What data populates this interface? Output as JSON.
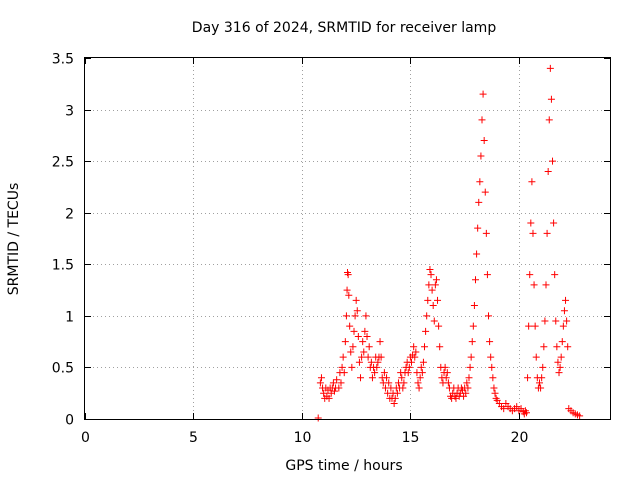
{
  "chart_data": {
    "type": "scatter",
    "title": "Day 316 of 2024, SRMTID for receiver lamp",
    "xlabel": "GPS time / hours",
    "ylabel": "SRMTID / TECUs",
    "xlim": [
      0,
      24.2
    ],
    "ylim": [
      0,
      3.5
    ],
    "xticks": [
      0,
      5,
      10,
      15,
      20
    ],
    "xtick_labels": [
      "0",
      "5",
      "10",
      "15",
      "20"
    ],
    "yticks": [
      0,
      0.5,
      1,
      1.5,
      2,
      2.5,
      3,
      3.5
    ],
    "ytick_labels": [
      "0",
      "0.5",
      "1",
      "1.5",
      "2",
      "2.5",
      "3",
      "3.5"
    ],
    "grid": true,
    "marker": "+",
    "color": "#ff0000",
    "series": [
      {
        "name": "SRMTID",
        "points": [
          [
            10.75,
            0.01
          ],
          [
            10.85,
            0.35
          ],
          [
            10.9,
            0.4
          ],
          [
            10.95,
            0.3
          ],
          [
            11.0,
            0.25
          ],
          [
            11.05,
            0.2
          ],
          [
            11.1,
            0.3
          ],
          [
            11.15,
            0.22
          ],
          [
            11.2,
            0.28
          ],
          [
            11.25,
            0.2
          ],
          [
            11.3,
            0.3
          ],
          [
            11.35,
            0.25
          ],
          [
            11.4,
            0.3
          ],
          [
            11.45,
            0.35
          ],
          [
            11.5,
            0.27
          ],
          [
            11.55,
            0.3
          ],
          [
            11.6,
            0.38
          ],
          [
            11.7,
            0.3
          ],
          [
            11.75,
            0.45
          ],
          [
            11.8,
            0.35
          ],
          [
            11.85,
            0.5
          ],
          [
            11.9,
            0.6
          ],
          [
            11.95,
            0.45
          ],
          [
            12.0,
            0.75
          ],
          [
            12.05,
            1.0
          ],
          [
            12.08,
            1.25
          ],
          [
            12.1,
            1.42
          ],
          [
            12.13,
            1.4
          ],
          [
            12.16,
            1.2
          ],
          [
            12.2,
            0.9
          ],
          [
            12.25,
            0.65
          ],
          [
            12.3,
            0.5
          ],
          [
            12.35,
            0.7
          ],
          [
            12.4,
            0.85
          ],
          [
            12.45,
            1.0
          ],
          [
            12.5,
            1.15
          ],
          [
            12.55,
            1.05
          ],
          [
            12.6,
            0.8
          ],
          [
            12.65,
            0.55
          ],
          [
            12.7,
            0.4
          ],
          [
            12.75,
            0.6
          ],
          [
            12.8,
            0.75
          ],
          [
            12.85,
            0.65
          ],
          [
            12.9,
            0.85
          ],
          [
            12.95,
            1.0
          ],
          [
            13.0,
            0.8
          ],
          [
            13.05,
            0.6
          ],
          [
            13.1,
            0.7
          ],
          [
            13.15,
            0.5
          ],
          [
            13.2,
            0.55
          ],
          [
            13.25,
            0.4
          ],
          [
            13.3,
            0.5
          ],
          [
            13.35,
            0.45
          ],
          [
            13.4,
            0.6
          ],
          [
            13.45,
            0.5
          ],
          [
            13.5,
            0.55
          ],
          [
            13.55,
            0.6
          ],
          [
            13.6,
            0.75
          ],
          [
            13.65,
            0.6
          ],
          [
            13.7,
            0.4
          ],
          [
            13.75,
            0.35
          ],
          [
            13.8,
            0.45
          ],
          [
            13.85,
            0.3
          ],
          [
            13.9,
            0.4
          ],
          [
            13.95,
            0.25
          ],
          [
            14.0,
            0.35
          ],
          [
            14.05,
            0.2
          ],
          [
            14.1,
            0.3
          ],
          [
            14.15,
            0.2
          ],
          [
            14.2,
            0.25
          ],
          [
            14.25,
            0.15
          ],
          [
            14.3,
            0.2
          ],
          [
            14.35,
            0.3
          ],
          [
            14.4,
            0.25
          ],
          [
            14.45,
            0.35
          ],
          [
            14.5,
            0.3
          ],
          [
            14.55,
            0.45
          ],
          [
            14.6,
            0.4
          ],
          [
            14.65,
            0.3
          ],
          [
            14.7,
            0.35
          ],
          [
            14.75,
            0.45
          ],
          [
            14.8,
            0.5
          ],
          [
            14.85,
            0.55
          ],
          [
            14.9,
            0.45
          ],
          [
            14.95,
            0.5
          ],
          [
            15.0,
            0.6
          ],
          [
            15.05,
            0.55
          ],
          [
            15.1,
            0.62
          ],
          [
            15.15,
            0.7
          ],
          [
            15.2,
            0.6
          ],
          [
            15.25,
            0.65
          ],
          [
            15.3,
            0.45
          ],
          [
            15.35,
            0.35
          ],
          [
            15.4,
            0.3
          ],
          [
            15.45,
            0.4
          ],
          [
            15.5,
            0.5
          ],
          [
            15.55,
            0.45
          ],
          [
            15.6,
            0.55
          ],
          [
            15.65,
            0.7
          ],
          [
            15.7,
            0.85
          ],
          [
            15.75,
            1.0
          ],
          [
            15.8,
            1.15
          ],
          [
            15.85,
            1.3
          ],
          [
            15.9,
            1.45
          ],
          [
            15.95,
            1.4
          ],
          [
            16.0,
            1.25
          ],
          [
            16.05,
            1.1
          ],
          [
            16.1,
            0.95
          ],
          [
            16.15,
            1.3
          ],
          [
            16.2,
            1.35
          ],
          [
            16.25,
            1.15
          ],
          [
            16.3,
            0.9
          ],
          [
            16.35,
            0.7
          ],
          [
            16.4,
            0.5
          ],
          [
            16.45,
            0.4
          ],
          [
            16.5,
            0.35
          ],
          [
            16.55,
            0.45
          ],
          [
            16.6,
            0.5
          ],
          [
            16.65,
            0.4
          ],
          [
            16.7,
            0.45
          ],
          [
            16.75,
            0.35
          ],
          [
            16.8,
            0.3
          ],
          [
            16.85,
            0.22
          ],
          [
            16.9,
            0.2
          ],
          [
            16.95,
            0.25
          ],
          [
            17.0,
            0.3
          ],
          [
            17.05,
            0.22
          ],
          [
            17.1,
            0.2
          ],
          [
            17.15,
            0.25
          ],
          [
            17.2,
            0.3
          ],
          [
            17.25,
            0.22
          ],
          [
            17.3,
            0.25
          ],
          [
            17.35,
            0.3
          ],
          [
            17.4,
            0.28
          ],
          [
            17.45,
            0.22
          ],
          [
            17.5,
            0.3
          ],
          [
            17.55,
            0.25
          ],
          [
            17.6,
            0.35
          ],
          [
            17.65,
            0.3
          ],
          [
            17.7,
            0.4
          ],
          [
            17.75,
            0.5
          ],
          [
            17.8,
            0.6
          ],
          [
            17.85,
            0.75
          ],
          [
            17.9,
            0.9
          ],
          [
            17.95,
            1.1
          ],
          [
            18.0,
            1.35
          ],
          [
            18.05,
            1.6
          ],
          [
            18.1,
            1.85
          ],
          [
            18.15,
            2.1
          ],
          [
            18.2,
            2.3
          ],
          [
            18.25,
            2.55
          ],
          [
            18.3,
            2.9
          ],
          [
            18.35,
            3.15
          ],
          [
            18.4,
            2.7
          ],
          [
            18.45,
            2.2
          ],
          [
            18.5,
            1.8
          ],
          [
            18.55,
            1.4
          ],
          [
            18.6,
            1.0
          ],
          [
            18.65,
            0.75
          ],
          [
            18.7,
            0.6
          ],
          [
            18.75,
            0.5
          ],
          [
            18.8,
            0.4
          ],
          [
            18.85,
            0.3
          ],
          [
            18.9,
            0.25
          ],
          [
            18.95,
            0.2
          ],
          [
            19.0,
            0.18
          ],
          [
            19.1,
            0.15
          ],
          [
            19.2,
            0.12
          ],
          [
            19.3,
            0.1
          ],
          [
            19.4,
            0.15
          ],
          [
            19.5,
            0.12
          ],
          [
            19.6,
            0.1
          ],
          [
            19.7,
            0.08
          ],
          [
            19.8,
            0.1
          ],
          [
            19.9,
            0.12
          ],
          [
            20.0,
            0.08
          ],
          [
            20.1,
            0.1
          ],
          [
            20.2,
            0.07
          ],
          [
            20.25,
            0.05
          ],
          [
            20.3,
            0.08
          ],
          [
            20.35,
            0.06
          ],
          [
            20.4,
            0.4
          ],
          [
            20.45,
            0.9
          ],
          [
            20.5,
            1.4
          ],
          [
            20.55,
            1.9
          ],
          [
            20.6,
            2.3
          ],
          [
            20.65,
            1.8
          ],
          [
            20.7,
            1.3
          ],
          [
            20.75,
            0.9
          ],
          [
            20.8,
            0.6
          ],
          [
            20.85,
            0.4
          ],
          [
            20.9,
            0.3
          ],
          [
            20.95,
            0.35
          ],
          [
            21.0,
            0.3
          ],
          [
            21.05,
            0.4
          ],
          [
            21.1,
            0.5
          ],
          [
            21.15,
            0.7
          ],
          [
            21.2,
            0.95
          ],
          [
            21.25,
            1.3
          ],
          [
            21.3,
            1.8
          ],
          [
            21.35,
            2.4
          ],
          [
            21.4,
            2.9
          ],
          [
            21.45,
            3.4
          ],
          [
            21.5,
            3.1
          ],
          [
            21.55,
            2.5
          ],
          [
            21.6,
            1.9
          ],
          [
            21.65,
            1.4
          ],
          [
            21.7,
            0.95
          ],
          [
            21.75,
            0.7
          ],
          [
            21.8,
            0.55
          ],
          [
            21.85,
            0.45
          ],
          [
            21.9,
            0.5
          ],
          [
            21.95,
            0.6
          ],
          [
            22.0,
            0.75
          ],
          [
            22.05,
            0.9
          ],
          [
            22.1,
            1.05
          ],
          [
            22.15,
            1.15
          ],
          [
            22.2,
            0.95
          ],
          [
            22.25,
            0.7
          ],
          [
            22.3,
            0.1
          ],
          [
            22.4,
            0.08
          ],
          [
            22.5,
            0.06
          ],
          [
            22.6,
            0.05
          ],
          [
            22.7,
            0.04
          ],
          [
            22.8,
            0.03
          ]
        ]
      }
    ]
  }
}
